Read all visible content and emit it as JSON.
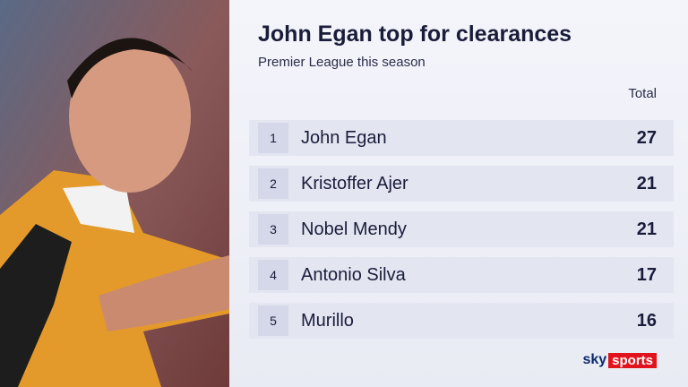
{
  "header": {
    "title": "John Egan top for clearances",
    "subtitle": "Premier League this season"
  },
  "table": {
    "column_header": "Total",
    "rows": [
      [
        "1",
        "John Egan",
        "27"
      ],
      [
        "2",
        "Kristoffer Ajer",
        "21"
      ],
      [
        "3",
        "Nobel Mendy",
        "21"
      ],
      [
        "4",
        "Antonio Silva",
        "17"
      ],
      [
        "5",
        "Murillo",
        "16"
      ]
    ]
  },
  "logo": {
    "sky": "sky",
    "sports": "sports"
  }
}
